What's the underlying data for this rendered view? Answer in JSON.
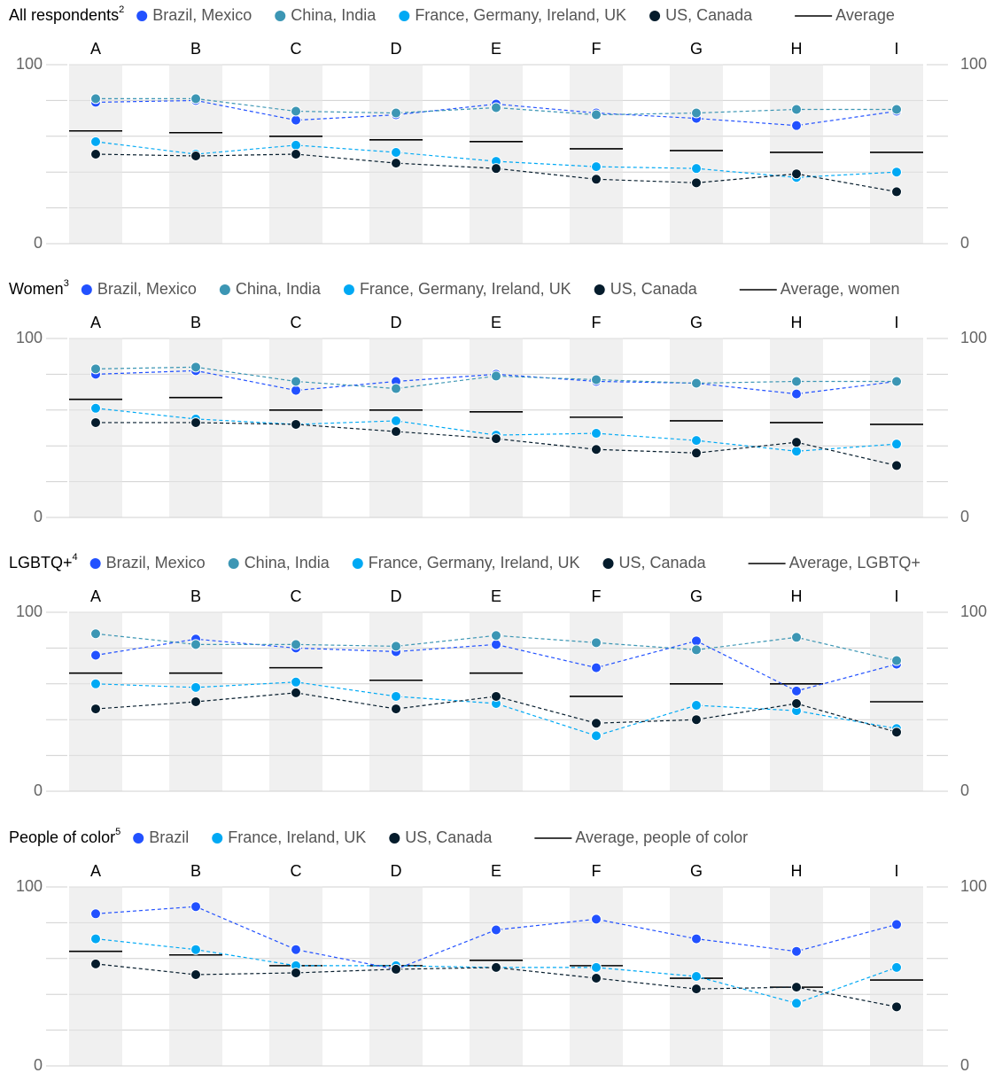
{
  "colors": {
    "brazil_mexico": "#2251ff",
    "china_india": "#3c96b4",
    "france_group": "#00a9f4",
    "us_canada": "#051c2c",
    "average": "#000000",
    "column_band": "#f0f0f0",
    "gridline": "#d0d0d0",
    "axis_text": "#666666"
  },
  "chart_data": [
    {
      "type": "scatter",
      "title": "All respondents",
      "title_sup": "2",
      "categories": [
        "A",
        "B",
        "C",
        "D",
        "E",
        "F",
        "G",
        "H",
        "I"
      ],
      "ylim": [
        0,
        100
      ],
      "y_ticks": [
        "0",
        "100"
      ],
      "gridlines": [
        20,
        40,
        60,
        80,
        100
      ],
      "series": [
        {
          "name": "Brazil, Mexico",
          "key": "brazil_mexico",
          "values": [
            79,
            80,
            69,
            72,
            78,
            73,
            70,
            66,
            74
          ]
        },
        {
          "name": "China, India",
          "key": "china_india",
          "values": [
            81,
            81,
            74,
            73,
            76,
            72,
            73,
            75,
            75
          ]
        },
        {
          "name": "France, Germany, Ireland, UK",
          "key": "france_group",
          "values": [
            57,
            50,
            55,
            51,
            46,
            43,
            42,
            37,
            40
          ]
        },
        {
          "name": "US, Canada",
          "key": "us_canada",
          "values": [
            50,
            49,
            50,
            45,
            42,
            36,
            34,
            39,
            29
          ]
        }
      ],
      "average": {
        "name": "Average",
        "values": [
          63,
          62,
          60,
          58,
          57,
          53,
          52,
          51,
          51
        ]
      }
    },
    {
      "type": "scatter",
      "title": "Women",
      "title_sup": "3",
      "categories": [
        "A",
        "B",
        "C",
        "D",
        "E",
        "F",
        "G",
        "H",
        "I"
      ],
      "ylim": [
        0,
        100
      ],
      "y_ticks": [
        "0",
        "100"
      ],
      "gridlines": [
        20,
        40,
        60,
        80,
        100
      ],
      "series": [
        {
          "name": "Brazil, Mexico",
          "key": "brazil_mexico",
          "values": [
            80,
            82,
            71,
            76,
            80,
            76,
            75,
            69,
            76
          ]
        },
        {
          "name": "China, India",
          "key": "china_india",
          "values": [
            83,
            84,
            76,
            72,
            79,
            77,
            75,
            76,
            76
          ]
        },
        {
          "name": "France, Germany, Ireland, UK",
          "key": "france_group",
          "values": [
            61,
            55,
            52,
            54,
            46,
            47,
            43,
            37,
            41
          ]
        },
        {
          "name": "US, Canada",
          "key": "us_canada",
          "values": [
            53,
            53,
            52,
            48,
            44,
            38,
            36,
            42,
            29
          ]
        }
      ],
      "average": {
        "name": "Average, women",
        "values": [
          66,
          67,
          60,
          60,
          59,
          56,
          54,
          53,
          52
        ]
      }
    },
    {
      "type": "scatter",
      "title": "LGBTQ+",
      "title_sup": "4",
      "categories": [
        "A",
        "B",
        "C",
        "D",
        "E",
        "F",
        "G",
        "H",
        "I"
      ],
      "ylim": [
        0,
        100
      ],
      "y_ticks": [
        "0",
        "100"
      ],
      "gridlines": [
        20,
        40,
        60,
        80,
        100
      ],
      "series": [
        {
          "name": "Brazil, Mexico",
          "key": "brazil_mexico",
          "values": [
            76,
            85,
            80,
            78,
            82,
            69,
            84,
            56,
            71
          ]
        },
        {
          "name": "China, India",
          "key": "china_india",
          "values": [
            88,
            82,
            82,
            81,
            87,
            83,
            79,
            86,
            73
          ]
        },
        {
          "name": "France, Germany, Ireland, UK",
          "key": "france_group",
          "values": [
            60,
            58,
            61,
            53,
            49,
            31,
            48,
            45,
            35
          ]
        },
        {
          "name": "US, Canada",
          "key": "us_canada",
          "values": [
            46,
            50,
            55,
            46,
            53,
            38,
            40,
            49,
            33
          ]
        }
      ],
      "average": {
        "name": "Average, LGBTQ+",
        "values": [
          66,
          66,
          69,
          62,
          66,
          53,
          60,
          60,
          50
        ]
      }
    },
    {
      "type": "scatter",
      "title": "People of color",
      "title_sup": "5",
      "categories": [
        "A",
        "B",
        "C",
        "D",
        "E",
        "F",
        "G",
        "H",
        "I"
      ],
      "ylim": [
        0,
        100
      ],
      "y_ticks": [
        "0",
        "100"
      ],
      "gridlines": [
        20,
        40,
        60,
        80,
        100
      ],
      "series": [
        {
          "name": "Brazil",
          "key": "brazil_mexico",
          "values": [
            85,
            89,
            65,
            54,
            76,
            82,
            71,
            64,
            79
          ]
        },
        {
          "name": "France, Ireland, UK",
          "key": "france_group",
          "values": [
            71,
            65,
            56,
            56,
            55,
            55,
            50,
            35,
            55
          ]
        },
        {
          "name": "US, Canada",
          "key": "us_canada",
          "values": [
            57,
            51,
            52,
            54,
            55,
            49,
            43,
            44,
            33
          ]
        }
      ],
      "average": {
        "name": "Average, people of color",
        "values": [
          64,
          62,
          56,
          56,
          59,
          56,
          49,
          44,
          48
        ]
      }
    }
  ]
}
